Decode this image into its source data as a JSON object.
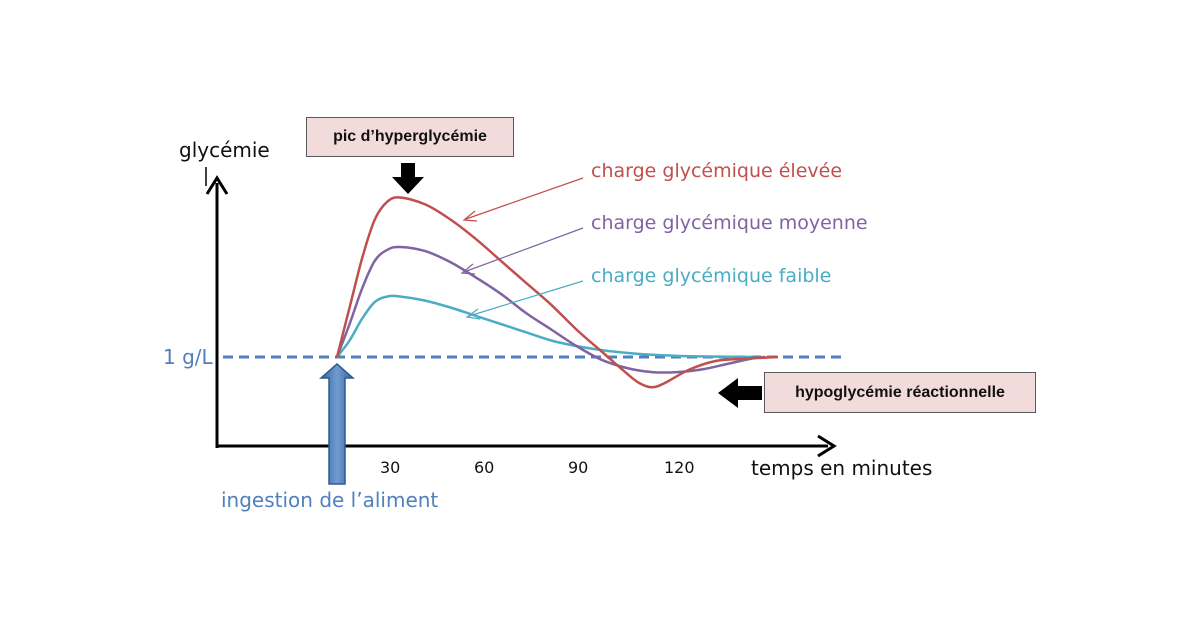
{
  "chart_data": {
    "type": "line",
    "ylabel": "glycémie",
    "xlabel": "temps en minutes",
    "x_ticks": [
      "30",
      "60",
      "90",
      "120"
    ],
    "baseline": {
      "label": "1 g/L",
      "value": 1.0,
      "style": "dashed",
      "color": "#4f81bd"
    },
    "series": [
      {
        "name": "charge glycémique élevée",
        "color": "#c0504d",
        "x": [
          20,
          24,
          28,
          32,
          36,
          40,
          48,
          56,
          64,
          72,
          80,
          88,
          96,
          104,
          112,
          116,
          120,
          124,
          132,
          140,
          148,
          156,
          160
        ],
        "y": [
          1.0,
          1.18,
          1.36,
          1.5,
          1.565,
          1.58,
          1.555,
          1.5,
          1.43,
          1.35,
          1.27,
          1.19,
          1.1,
          1.02,
          0.94,
          0.905,
          0.89,
          0.905,
          0.955,
          0.985,
          0.993,
          0.998,
          1.0
        ]
      },
      {
        "name": "charge glycémique moyenne",
        "color": "#8064a2",
        "x": [
          20,
          24,
          28,
          32,
          36,
          40,
          48,
          56,
          64,
          72,
          80,
          88,
          96,
          104,
          112,
          120,
          128,
          136,
          144,
          152,
          156
        ],
        "y": [
          1.0,
          1.12,
          1.25,
          1.35,
          1.39,
          1.4,
          1.385,
          1.345,
          1.29,
          1.23,
          1.16,
          1.1,
          1.04,
          0.99,
          0.96,
          0.945,
          0.945,
          0.955,
          0.975,
          0.995,
          1.0
        ]
      },
      {
        "name": "charge glycémique faible",
        "color": "#4bacc6",
        "x": [
          20,
          24,
          28,
          32,
          36,
          40,
          48,
          56,
          64,
          72,
          80,
          88,
          96,
          104,
          112,
          120,
          128,
          136,
          144,
          152
        ],
        "y": [
          1.0,
          1.06,
          1.14,
          1.2,
          1.22,
          1.22,
          1.205,
          1.18,
          1.15,
          1.12,
          1.09,
          1.06,
          1.04,
          1.025,
          1.015,
          1.008,
          1.004,
          1.002,
          1.001,
          1.0
        ]
      }
    ],
    "annotations": {
      "peak": "pic d’hyperglycémie",
      "hypo": "hypoglycémie  réactionnelle",
      "ingestion": "ingestion de l’aliment"
    }
  },
  "colors": {
    "axis": "#000000",
    "baseline": "#4f81bd",
    "ingestion_arrow": "#4f81bd",
    "box_fill": "#f2dcdb"
  }
}
